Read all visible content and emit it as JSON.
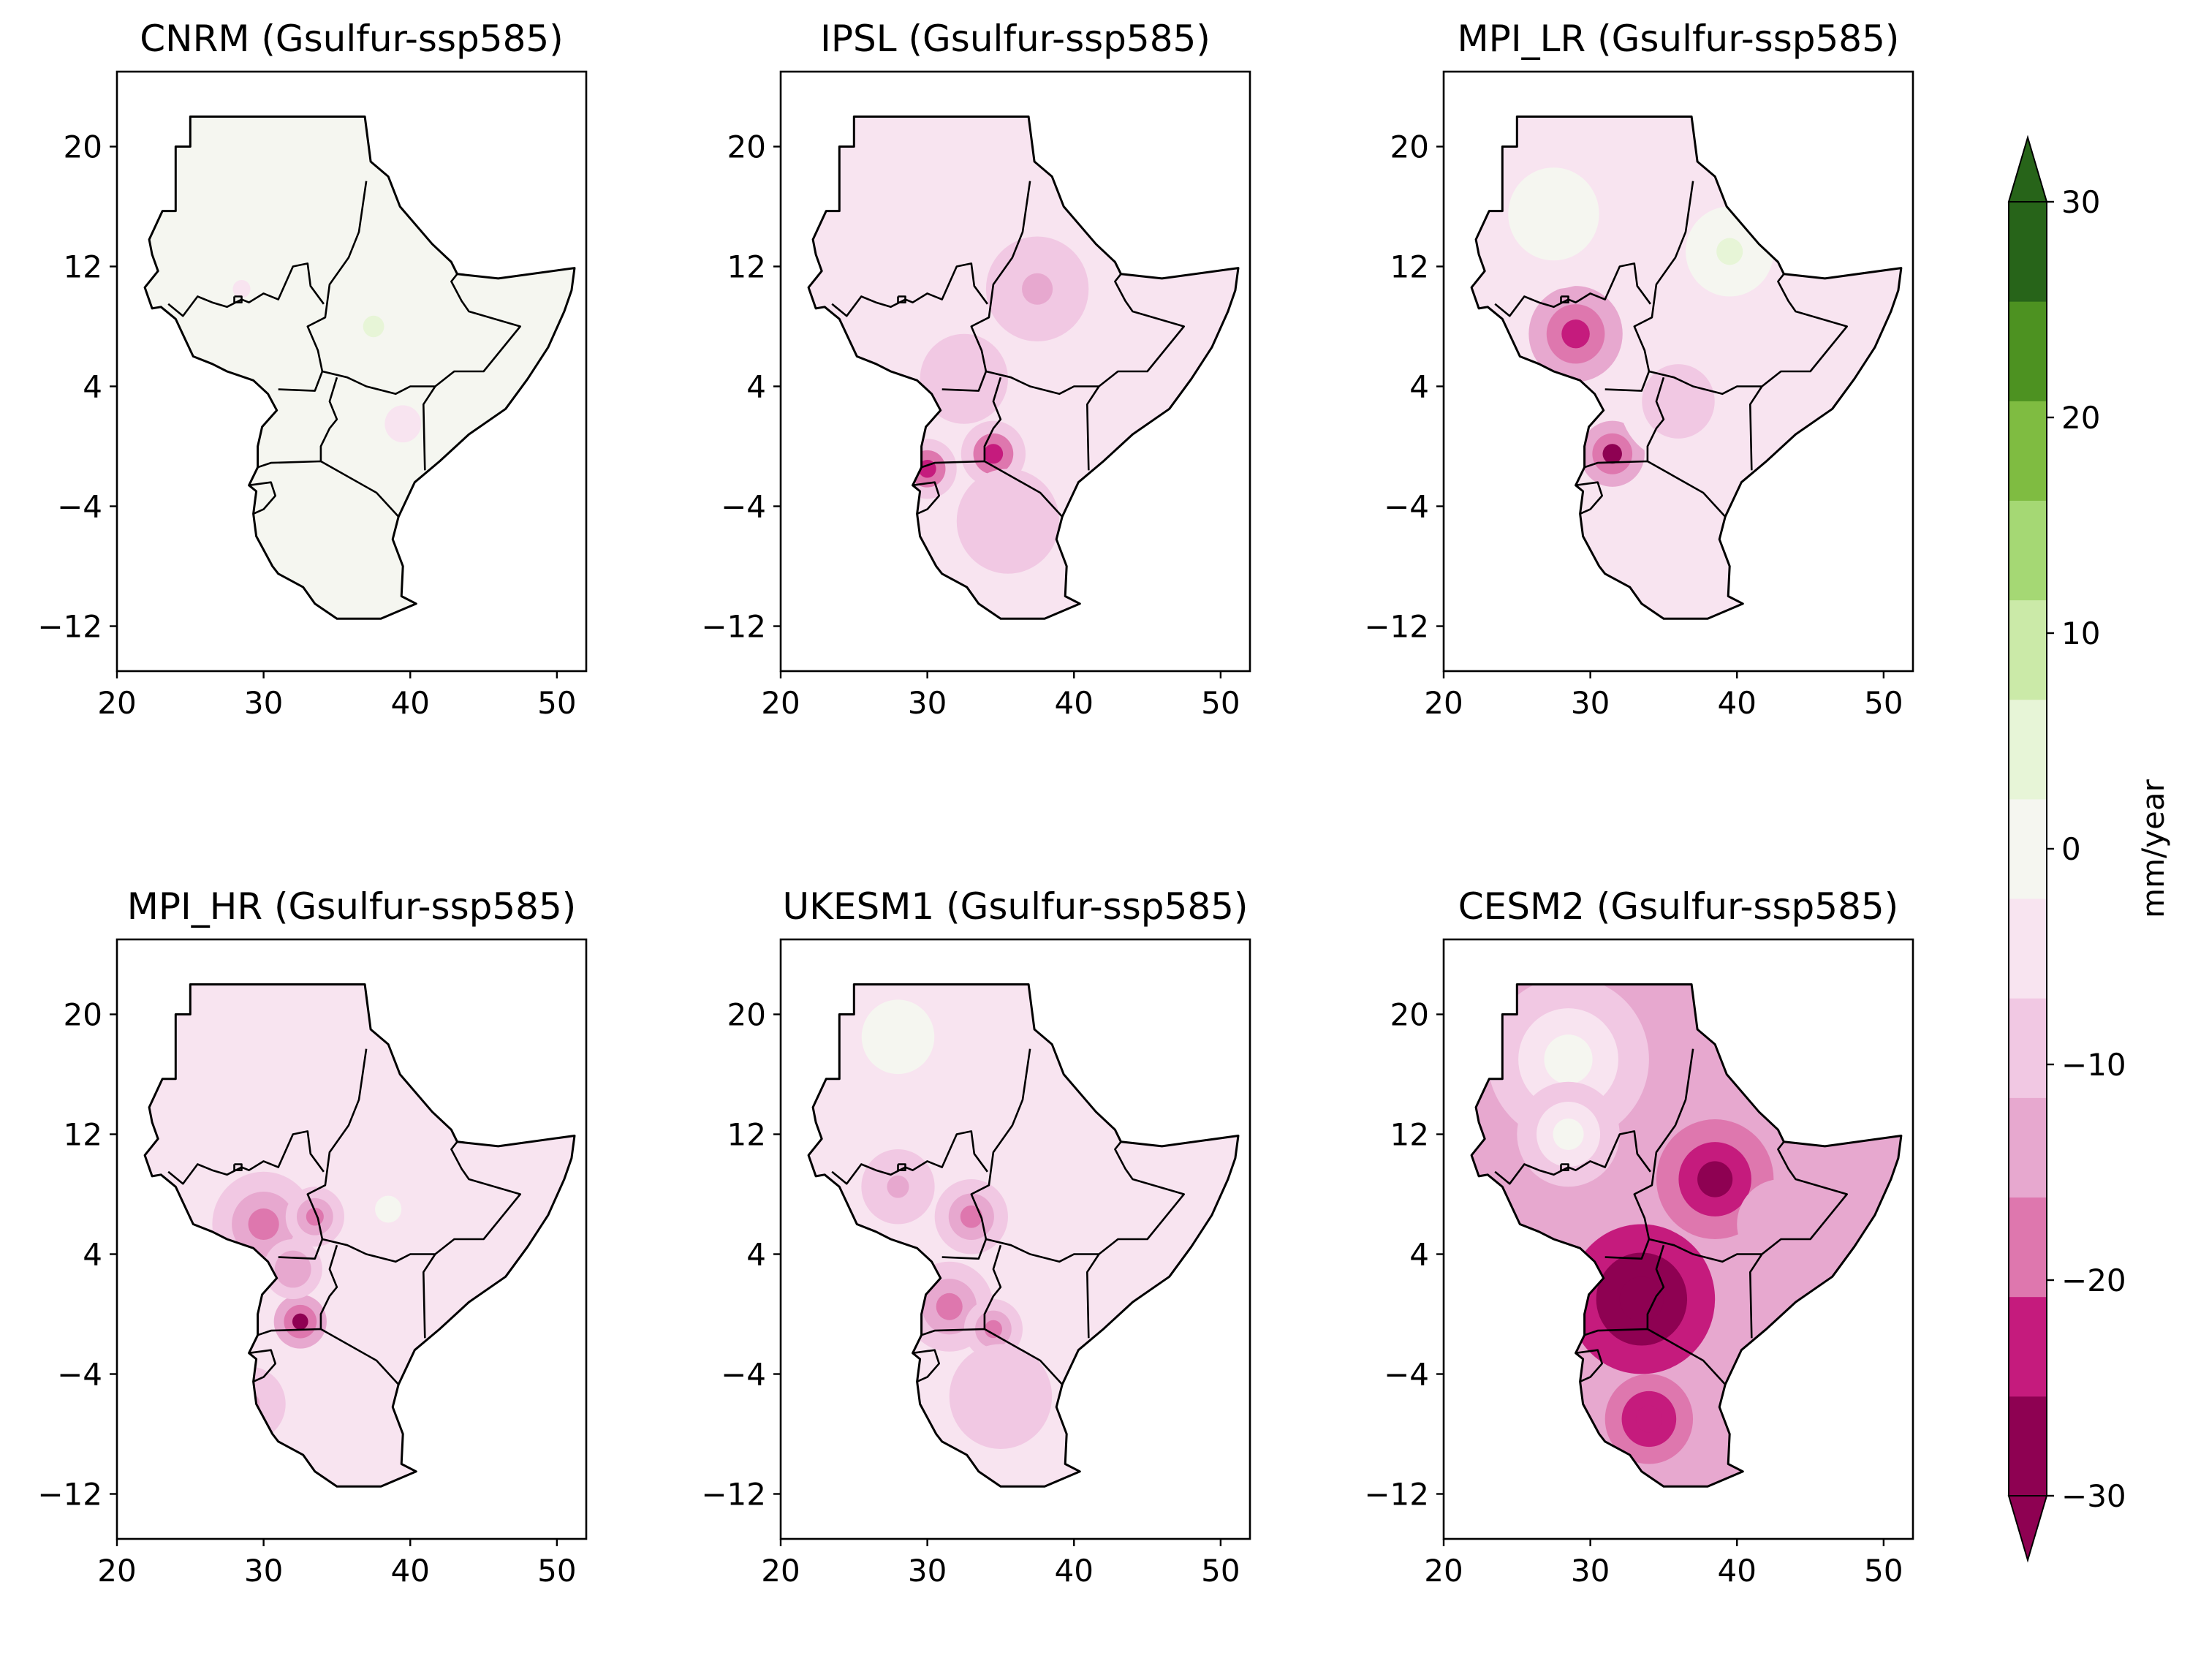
{
  "figure": {
    "colorbar": {
      "label": "mm/year",
      "ticks": [
        30,
        20,
        10,
        0,
        -10,
        -20,
        -30
      ],
      "tick_labels": [
        "30",
        "20",
        "10",
        "0",
        "−10",
        "−20",
        "−30"
      ],
      "levels": [
        -30,
        -25,
        -20,
        -15,
        -10,
        -5,
        0,
        5,
        10,
        15,
        20,
        25,
        30
      ],
      "colors": [
        "#8e0152",
        "#c51b7d",
        "#de77ae",
        "#e7a8cf",
        "#f1c8e3",
        "#f8e4f0",
        "#f5f6f0",
        "#e7f5d7",
        "#cbeaa8",
        "#a5d874",
        "#7fbc41",
        "#4d9221",
        "#276419"
      ],
      "extend": "both"
    },
    "axes": {
      "xticks": [
        20,
        30,
        40,
        50
      ],
      "xtick_labels": [
        "20",
        "30",
        "40",
        "50"
      ],
      "yticks": [
        20,
        12,
        4,
        -4,
        -12
      ],
      "ytick_labels": [
        "20",
        "12",
        "4",
        "−4",
        "−12"
      ],
      "xlim": [
        20,
        52
      ],
      "ylim": [
        -15,
        25
      ]
    },
    "panels": [
      {
        "title": "CNRM (Gsulfur-ssp585)",
        "background_value": 2,
        "anomalies": [
          {
            "lon": 37.5,
            "lat": 8.0,
            "r": 2.4,
            "value": 5
          },
          {
            "lon": 35.0,
            "lat": -3.5,
            "r": 1.5,
            "value": 4
          },
          {
            "lon": 28.5,
            "lat": 10.5,
            "r": 2.0,
            "value": -1
          },
          {
            "lon": 39.5,
            "lat": 1.5,
            "r": 2.0,
            "value": -2
          }
        ]
      },
      {
        "title": "IPSL (Gsulfur-ssp585)",
        "background_value": -4,
        "anomalies": [
          {
            "lon": 30.0,
            "lat": -1.5,
            "r": 2.0,
            "value": -22
          },
          {
            "lon": 34.5,
            "lat": -0.5,
            "r": 2.2,
            "value": -22
          },
          {
            "lon": 37.5,
            "lat": 10.5,
            "r": 3.5,
            "value": -12
          },
          {
            "lon": 32.5,
            "lat": 4.5,
            "r": 3.0,
            "value": -10
          },
          {
            "lon": 35.5,
            "lat": -5.0,
            "r": 3.5,
            "value": -9
          }
        ]
      },
      {
        "title": "MPI_LR (Gsulfur-ssp585)",
        "background_value": -3,
        "anomalies": [
          {
            "lon": 29.0,
            "lat": 7.5,
            "r": 3.2,
            "value": -25
          },
          {
            "lon": 31.5,
            "lat": -0.5,
            "r": 2.2,
            "value": -27
          },
          {
            "lon": 39.5,
            "lat": 13.0,
            "r": 3.0,
            "value": 8
          },
          {
            "lon": 27.5,
            "lat": 15.5,
            "r": 5.0,
            "value": 2
          },
          {
            "lon": 36.0,
            "lat": 3.0,
            "r": 4.0,
            "value": -8
          }
        ]
      },
      {
        "title": "MPI_HR (Gsulfur-ssp585)",
        "background_value": -4,
        "anomalies": [
          {
            "lon": 32.5,
            "lat": -0.5,
            "r": 1.8,
            "value": -28
          },
          {
            "lon": 30.0,
            "lat": 6.0,
            "r": 3.5,
            "value": -18
          },
          {
            "lon": 33.5,
            "lat": 6.5,
            "r": 2.0,
            "value": -20
          },
          {
            "lon": 32.0,
            "lat": 3.0,
            "r": 2.0,
            "value": -14
          },
          {
            "lon": 38.5,
            "lat": 7.0,
            "r": 3.0,
            "value": 1
          },
          {
            "lon": 29.0,
            "lat": -6.0,
            "r": 2.5,
            "value": -12
          }
        ]
      },
      {
        "title": "UKESM1 (Gsulfur-ssp585)",
        "background_value": -5,
        "anomalies": [
          {
            "lon": 31.5,
            "lat": 0.5,
            "r": 3.0,
            "value": -20
          },
          {
            "lon": 33.0,
            "lat": 6.5,
            "r": 2.5,
            "value": -18
          },
          {
            "lon": 34.5,
            "lat": -1.0,
            "r": 2.0,
            "value": -17
          },
          {
            "lon": 28.0,
            "lat": 8.5,
            "r": 2.5,
            "value": -12
          },
          {
            "lon": 28.0,
            "lat": 18.5,
            "r": 4.0,
            "value": 3
          },
          {
            "lon": 35.0,
            "lat": -5.5,
            "r": 3.5,
            "value": -10
          }
        ]
      },
      {
        "title": "CESM2 (Gsulfur-ssp585)",
        "background_value": -15,
        "anomalies": [
          {
            "lon": 33.5,
            "lat": 1.0,
            "r": 5.0,
            "value": -32
          },
          {
            "lon": 38.5,
            "lat": 9.0,
            "r": 4.0,
            "value": -30
          },
          {
            "lon": 28.5,
            "lat": 17.0,
            "r": 5.5,
            "value": 3
          },
          {
            "lon": 28.5,
            "lat": 12.0,
            "r": 3.5,
            "value": 0
          },
          {
            "lon": 34.0,
            "lat": -7.0,
            "r": 3.0,
            "value": -25
          },
          {
            "lon": 43.0,
            "lat": 6.0,
            "r": 3.0,
            "value": -15
          }
        ]
      }
    ]
  }
}
